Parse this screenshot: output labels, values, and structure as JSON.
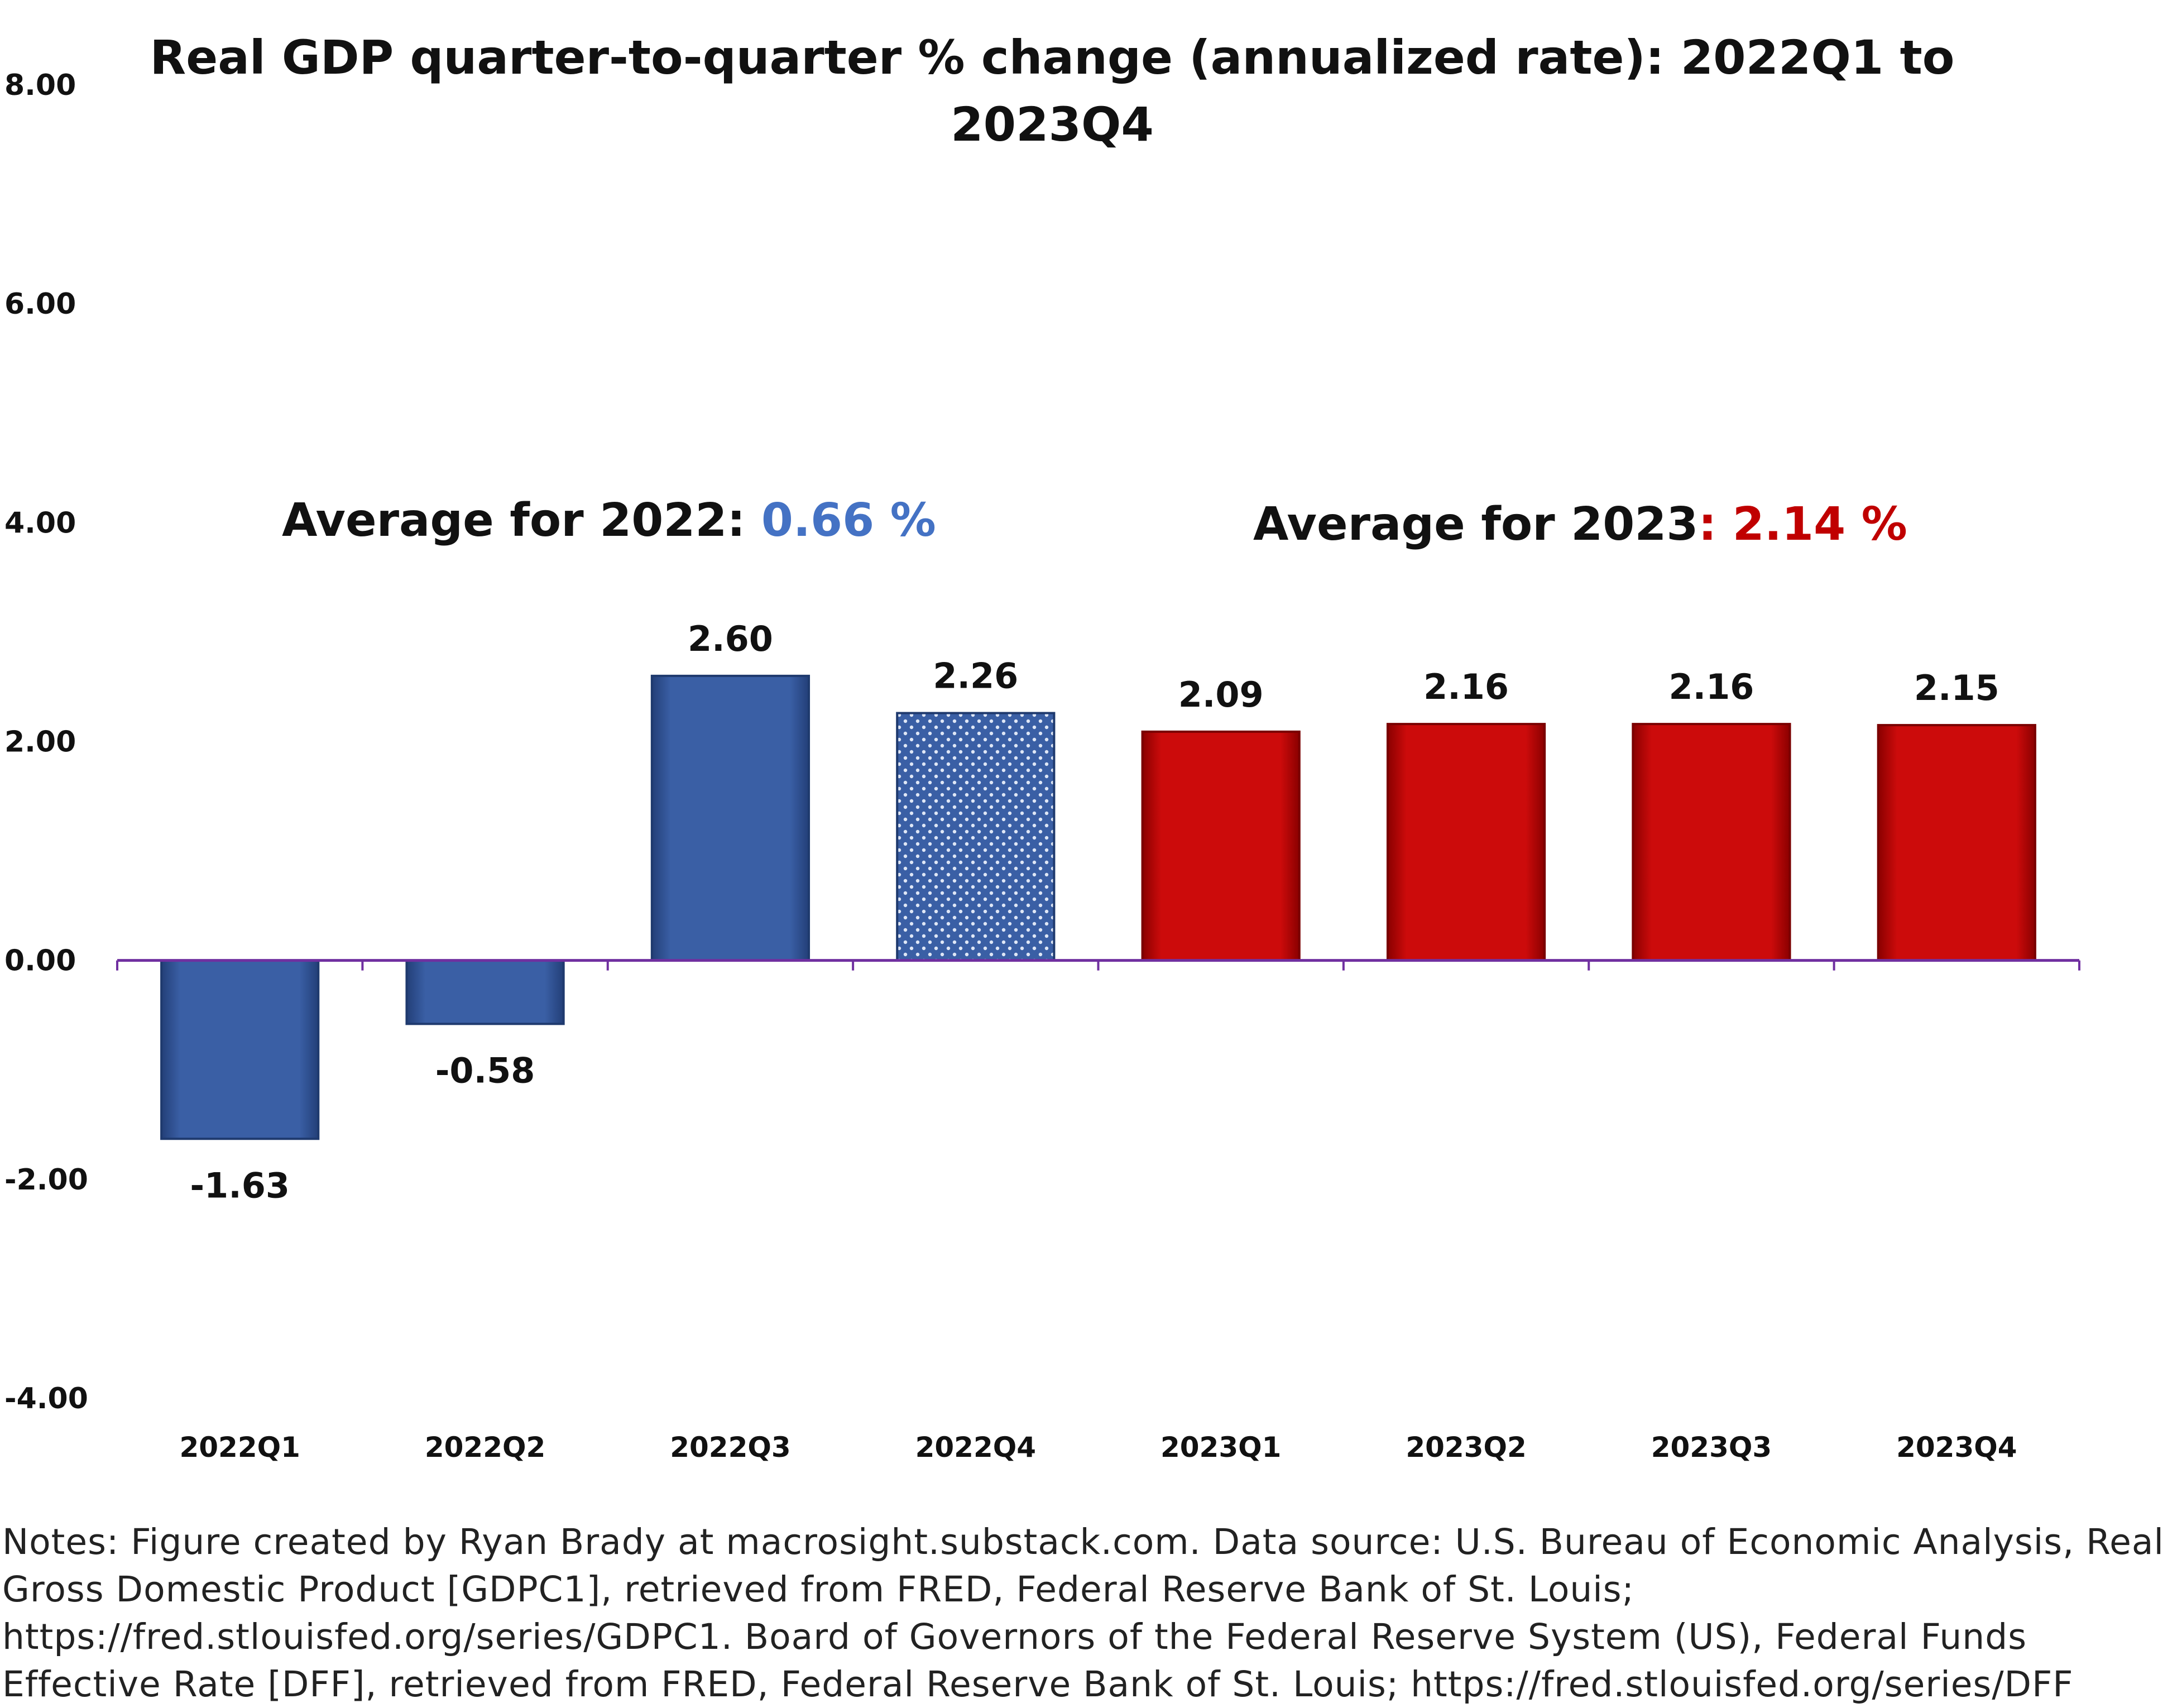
{
  "colors": {
    "blue": "#3a5fa5",
    "red": "#cc0b0b",
    "axis": "#7030a0",
    "avg_2022_value": "#4472c4",
    "avg_2023_value": "#c00000"
  },
  "chart_data": {
    "type": "bar",
    "title_line1": "Real GDP quarter-to-quarter % change (annualized rate): 2022Q1 to",
    "title_line2": "2023Q4",
    "categories": [
      "2022Q1",
      "2022Q2",
      "2022Q3",
      "2022Q4",
      "2023Q1",
      "2023Q2",
      "2023Q3",
      "2023Q4"
    ],
    "values": [
      -1.63,
      -0.58,
      2.6,
      2.26,
      2.09,
      2.16,
      2.16,
      2.15
    ],
    "value_labels": [
      "-1.63",
      "-0.58",
      "2.60",
      "2.26",
      "2.09",
      "2.16",
      "2.16",
      "2.15"
    ],
    "bar_colors": [
      "blue",
      "blue",
      "blue",
      "blue-dotted",
      "red",
      "red",
      "red",
      "red"
    ],
    "ylim": [
      -4,
      8
    ],
    "yticks": [
      -4,
      -2,
      0,
      2,
      4,
      6,
      8
    ],
    "ytick_labels": [
      "-4.00",
      "-2.00",
      "0.00",
      "2.00",
      "4.00",
      "6.00",
      "8.00"
    ],
    "grid": false,
    "annotations": {
      "avg_2022_label": "Average for 2022: ",
      "avg_2022_value": "0.66 %",
      "avg_2023_label": "Average for 2023",
      "avg_2023_value": ": 2.14 %"
    }
  },
  "notes": "Notes: Figure created by Ryan Brady at macrosight.substack.com. Data source: U.S. Bureau of Economic Analysis, Real Gross Domestic Product [GDPC1], retrieved from FRED, Federal Reserve Bank of St. Louis; https://fred.stlouisfed.org/series/GDPC1. Board of Governors of the Federal Reserve System (US), Federal Funds Effective Rate [DFF], retrieved from FRED, Federal Reserve Bank of St. Louis; https://fred.stlouisfed.org/series/DFF"
}
